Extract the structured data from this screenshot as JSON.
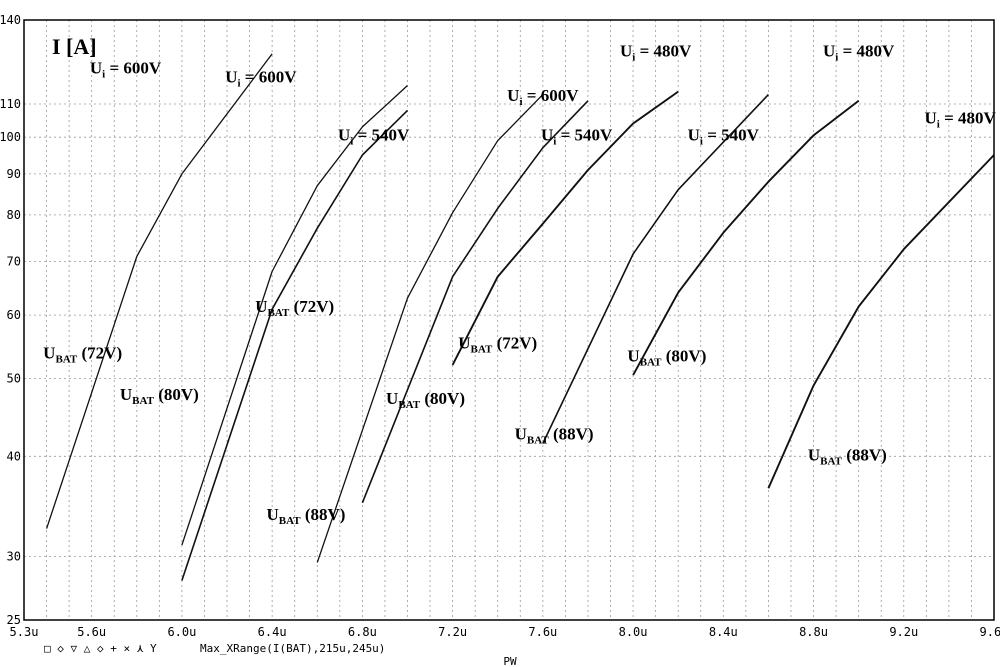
{
  "chart_data": {
    "type": "line",
    "ylabel": "I [A]",
    "xlabel": "PW",
    "y_scale": "log",
    "xlim": [
      5.3,
      9.6
    ],
    "ylim": [
      25,
      140
    ],
    "grid": true,
    "x_ticks": [
      {
        "v": 5.3,
        "label": "5.3u"
      },
      {
        "v": 5.6,
        "label": "5.6u"
      },
      {
        "v": 6.0,
        "label": "6.0u"
      },
      {
        "v": 6.4,
        "label": "6.4u"
      },
      {
        "v": 6.8,
        "label": "6.8u"
      },
      {
        "v": 7.2,
        "label": "7.2u"
      },
      {
        "v": 7.6,
        "label": "7.6u"
      },
      {
        "v": 8.0,
        "label": "8.0u"
      },
      {
        "v": 8.4,
        "label": "8.4u"
      },
      {
        "v": 8.8,
        "label": "8.8u"
      },
      {
        "v": 9.2,
        "label": "9.2u"
      },
      {
        "v": 9.6,
        "label": "9.6u"
      }
    ],
    "y_ticks": [
      {
        "v": 25,
        "label": "25"
      },
      {
        "v": 30,
        "label": "30"
      },
      {
        "v": 40,
        "label": "40"
      },
      {
        "v": 50,
        "label": "50"
      },
      {
        "v": 60,
        "label": "60"
      },
      {
        "v": 70,
        "label": "70"
      },
      {
        "v": 80,
        "label": "80"
      },
      {
        "v": 90,
        "label": "90"
      },
      {
        "v": 100,
        "label": "100"
      },
      {
        "v": 110,
        "label": "110"
      },
      {
        "v": 140,
        "label": "140"
      }
    ],
    "series": [
      {
        "ui": "600V",
        "ubat": "72V",
        "points": [
          [
            5.4,
            32.5
          ],
          [
            5.8,
            71
          ],
          [
            6.0,
            90
          ],
          [
            6.4,
            127
          ]
        ]
      },
      {
        "ui": "600V",
        "ubat": "80V",
        "points": [
          [
            6.0,
            31
          ],
          [
            6.4,
            68
          ],
          [
            6.6,
            87
          ],
          [
            6.8,
            103
          ],
          [
            7.0,
            116
          ]
        ]
      },
      {
        "ui": "600V",
        "ubat": "88V",
        "points": [
          [
            6.6,
            29.5
          ],
          [
            7.0,
            63
          ],
          [
            7.2,
            80.5
          ],
          [
            7.4,
            99
          ],
          [
            7.6,
            113
          ]
        ]
      },
      {
        "ui": "540V",
        "ubat": "72V",
        "points": [
          [
            6.0,
            28
          ],
          [
            6.4,
            61
          ],
          [
            6.6,
            77
          ],
          [
            6.8,
            95
          ],
          [
            7.0,
            108
          ]
        ]
      },
      {
        "ui": "540V",
        "ubat": "80V",
        "points": [
          [
            6.8,
            35
          ],
          [
            7.2,
            67
          ],
          [
            7.4,
            81.5
          ],
          [
            7.6,
            97
          ],
          [
            7.8,
            111
          ]
        ]
      },
      {
        "ui": "540V",
        "ubat": "88V",
        "points": [
          [
            7.6,
            41.5
          ],
          [
            8.0,
            71.5
          ],
          [
            8.2,
            86
          ],
          [
            8.6,
            113
          ]
        ]
      },
      {
        "ui": "480V",
        "ubat": "72V",
        "points": [
          [
            7.2,
            52
          ],
          [
            7.4,
            67
          ],
          [
            7.6,
            78
          ],
          [
            7.8,
            91
          ],
          [
            8.0,
            104
          ],
          [
            8.2,
            114
          ]
        ]
      },
      {
        "ui": "480V",
        "ubat": "80V",
        "points": [
          [
            8.0,
            50.5
          ],
          [
            8.2,
            64
          ],
          [
            8.4,
            76
          ],
          [
            8.6,
            88
          ],
          [
            8.8,
            100.5
          ],
          [
            9.0,
            111
          ]
        ]
      },
      {
        "ui": "480V",
        "ubat": "88V",
        "points": [
          [
            8.6,
            36.5
          ],
          [
            8.8,
            49
          ],
          [
            9.0,
            61.5
          ],
          [
            9.2,
            72.5
          ],
          [
            9.6,
            95
          ]
        ]
      }
    ],
    "annotations": [
      {
        "text": "Ui = 600V",
        "x": 5.75,
        "y": 120
      },
      {
        "text": "Ui = 600V",
        "x": 6.35,
        "y": 117
      },
      {
        "text": "Ui = 600V",
        "x": 7.6,
        "y": 111
      },
      {
        "text": "Ui = 540V",
        "x": 6.85,
        "y": 99
      },
      {
        "text": "Ui = 540V",
        "x": 7.75,
        "y": 99
      },
      {
        "text": "Ui = 540V",
        "x": 8.4,
        "y": 99
      },
      {
        "text": "Ui = 480V",
        "x": 8.1,
        "y": 126
      },
      {
        "text": "Ui = 480V",
        "x": 9.0,
        "y": 126
      },
      {
        "text": "Ui = 480V",
        "x": 9.45,
        "y": 104
      },
      {
        "text": "UBAT (72V)",
        "x": 5.56,
        "y": 53
      },
      {
        "text": "UBAT (80V)",
        "x": 5.9,
        "y": 47
      },
      {
        "text": "UBAT (88V)",
        "x": 6.55,
        "y": 33.3
      },
      {
        "text": "UBAT (72V)",
        "x": 6.5,
        "y": 60.5
      },
      {
        "text": "UBAT (80V)",
        "x": 7.08,
        "y": 46.5
      },
      {
        "text": "UBAT (88V)",
        "x": 7.65,
        "y": 42
      },
      {
        "text": "UBAT (72V)",
        "x": 7.4,
        "y": 54.5
      },
      {
        "text": "UBAT (80V)",
        "x": 8.15,
        "y": 52.5
      },
      {
        "text": "UBAT (88V)",
        "x": 8.95,
        "y": 39.5
      }
    ]
  },
  "footer": {
    "markers": "□ ◇ ▽ △ ◇ + × ⋏ Y",
    "trace": "Max_XRange(I(BAT),215u,245u)"
  }
}
